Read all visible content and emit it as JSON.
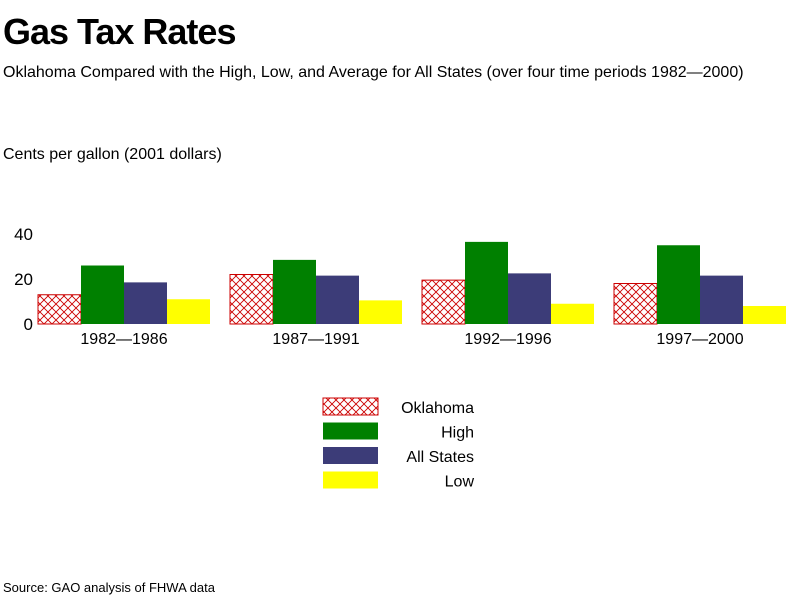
{
  "title": "Gas Tax Rates",
  "subtitle": "Oklahoma Compared with the High, Low, and Average for All States (over four time periods 1982—2000)",
  "source": "Source: GAO analysis of FHWA data",
  "colors": {
    "oklahoma": "#cc0000",
    "high": "#008000",
    "all_states": "#3c3c78",
    "low": "#ffff00"
  },
  "chart_data": {
    "type": "bar",
    "categories": [
      "1982—1986",
      "1987—1991",
      "1992—1996",
      "1997—2000"
    ],
    "ylabel": "Cents per gallon (2001 dollars)",
    "ylim": [
      0,
      40
    ],
    "yticks": [
      0,
      20,
      40
    ],
    "grid": false,
    "legend_position": "bottom-center",
    "series": [
      {
        "name": "Oklahoma",
        "values": [
          13,
          22,
          19.5,
          18
        ],
        "color": "#cc0000",
        "pattern": "crosshatch"
      },
      {
        "name": "High",
        "values": [
          26,
          28.5,
          36.5,
          35
        ],
        "color": "#008000"
      },
      {
        "name": "All States",
        "values": [
          18.5,
          21.5,
          22.5,
          21.5
        ],
        "color": "#3c3c78"
      },
      {
        "name": "Low",
        "values": [
          11,
          10.5,
          9,
          8
        ],
        "color": "#ffff00"
      }
    ]
  }
}
